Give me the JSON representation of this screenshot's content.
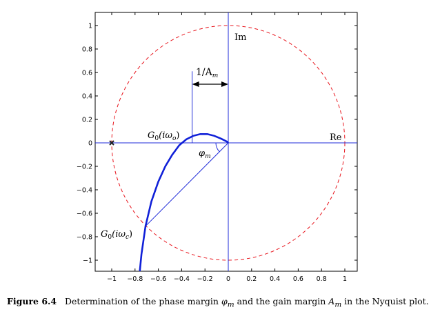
{
  "chart_data": {
    "type": "line",
    "xlim": [
      -1.05,
      1.05
    ],
    "ylim": [
      -1.1,
      1.1
    ],
    "x_ticks": [
      -1,
      -0.8,
      -0.6,
      -0.4,
      -0.2,
      0,
      0.2,
      0.4,
      0.6,
      0.8,
      1
    ],
    "y_ticks": [
      1,
      0.8,
      0.6,
      0.4,
      0.2,
      0,
      -0.2,
      -0.4,
      -0.6,
      -0.8,
      -1
    ],
    "x_tick_labels": [
      "−1",
      "−0.8",
      "−0.6",
      "−0.4",
      "−0.2",
      "0",
      "0.2",
      "0.4",
      "0.6",
      "0.8",
      "1"
    ],
    "y_tick_labels": [
      "1",
      "0.8",
      "0.6",
      "0.4",
      "0.2",
      "0",
      "−0.2",
      "−0.4",
      "−0.6",
      "−0.8",
      "−1"
    ],
    "grid": false,
    "unit_circle": {
      "center": [
        0,
        0
      ],
      "radius": 1,
      "color": "#e8141c",
      "style": "dashed"
    },
    "axes_color": "#1f2bd8",
    "series": [
      {
        "color": "#1020d8",
        "x": [
          -0.76,
          -0.745,
          -0.71,
          -0.66,
          -0.6,
          -0.54,
          -0.48,
          -0.42,
          -0.36,
          -0.3,
          -0.24,
          -0.18,
          -0.12,
          -0.06,
          -0.01,
          0.0
        ],
        "y": [
          -1.1,
          -0.95,
          -0.71,
          -0.5,
          -0.33,
          -0.2,
          -0.1,
          -0.02,
          0.03,
          0.06,
          0.075,
          0.075,
          0.06,
          0.035,
          0.01,
          0.0
        ]
      }
    ],
    "critical_point": {
      "x": -1,
      "y": 0
    },
    "crossover_point": {
      "x": -0.71,
      "y": -0.71
    },
    "phase_crossing_point": {
      "x": -0.31,
      "y": 0
    },
    "annotations": {
      "im": "Im",
      "re": "Re",
      "inv_am": "1/A",
      "inv_am_sub": "m",
      "g0_wo": "G",
      "g0_wo_sub": "0",
      "g0_wo_arg": "(iω",
      "g0_wo_arg_sub": "o",
      "g0_wc": "G",
      "g0_wc_sub": "0",
      "g0_wc_arg": "(iω",
      "g0_wc_arg_sub": "c",
      "close_paren": ")",
      "phi": "φ",
      "phi_sub": "m"
    }
  },
  "caption": {
    "label": "Figure 6.4",
    "text_a": "Determination of the phase margin",
    "phi": "φ",
    "phi_sub": "m",
    "text_b": "and the gain margin",
    "am": "A",
    "am_sub": "m",
    "text_c": "in the Nyquist plot."
  }
}
